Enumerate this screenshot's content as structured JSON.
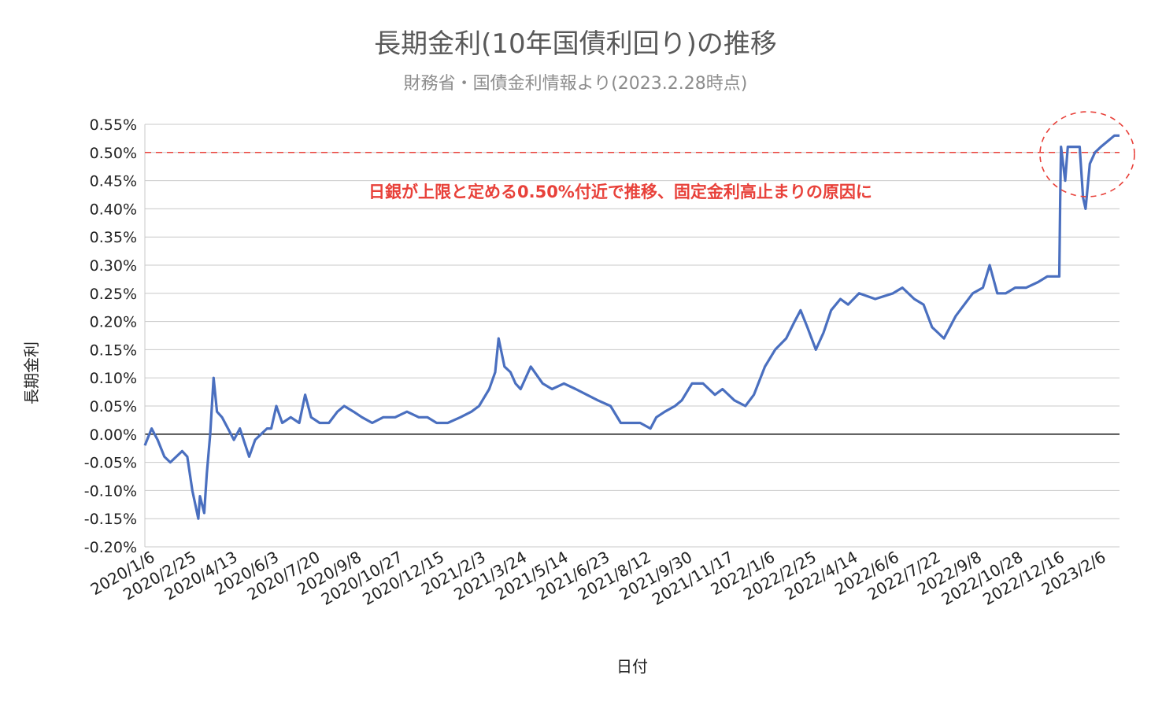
{
  "chart_data": {
    "type": "line",
    "title": "長期金利(10年国債利回り)の推移",
    "subtitle": "財務省・国債金利情報より(2023.2.28時点)",
    "xlabel": "日付",
    "ylabel": "長期金利",
    "ylim": [
      -0.2,
      0.55
    ],
    "yticks": [
      0.55,
      0.5,
      0.45,
      0.4,
      0.35,
      0.3,
      0.25,
      0.2,
      0.15,
      0.1,
      0.05,
      0.0,
      -0.05,
      -0.1,
      -0.15,
      -0.2
    ],
    "ytick_labels": [
      "0.55%",
      "0.50%",
      "0.45%",
      "0.40%",
      "0.35%",
      "0.30%",
      "0.25%",
      "0.20%",
      "0.15%",
      "0.10%",
      "0.05%",
      "0.00%",
      "-0.05%",
      "-0.10%",
      "-0.15%",
      "-0.20%"
    ],
    "xtick_labels": [
      "2020/1/6",
      "2020/2/25",
      "2020/4/13",
      "2020/6/3",
      "2020/7/20",
      "2020/9/8",
      "2020/10/27",
      "2020/12/15",
      "2021/2/3",
      "2021/3/24",
      "2021/5/14",
      "2021/6/23",
      "2021/8/12",
      "2021/9/30",
      "2021/11/17",
      "2022/1/6",
      "2022/2/25",
      "2022/4/14",
      "2022/6/6",
      "2022/7/22",
      "2022/9/8",
      "2022/10/28",
      "2022/12/16",
      "2023/2/6"
    ],
    "grid": true,
    "legend": "none",
    "reference_line": {
      "value": 0.5,
      "style": "dashed",
      "color": "#e8413a"
    },
    "annotation": "日銀が上限と定める0.50%付近で推移、固定金利高止まりの原因に",
    "annotation_color": "#e8413a",
    "highlight": "dashed-ellipse",
    "line_color": "#4a6fbf",
    "series": [
      {
        "points": [
          [
            "2020/1/6",
            -0.02
          ],
          [
            "2020/1/14",
            0.01
          ],
          [
            "2020/1/21",
            -0.01
          ],
          [
            "2020/1/29",
            -0.04
          ],
          [
            "2020/2/5",
            -0.05
          ],
          [
            "2020/2/12",
            -0.04
          ],
          [
            "2020/2/19",
            -0.03
          ],
          [
            "2020/2/25",
            -0.04
          ],
          [
            "2020/3/2",
            -0.1
          ],
          [
            "2020/3/9",
            -0.15
          ],
          [
            "2020/3/11",
            -0.11
          ],
          [
            "2020/3/16",
            -0.14
          ],
          [
            "2020/3/19",
            -0.07
          ],
          [
            "2020/3/23",
            0.0
          ],
          [
            "2020/3/27",
            0.1
          ],
          [
            "2020/3/31",
            0.04
          ],
          [
            "2020/4/6",
            0.03
          ],
          [
            "2020/4/13",
            0.01
          ],
          [
            "2020/4/20",
            -0.01
          ],
          [
            "2020/4/27",
            0.01
          ],
          [
            "2020/5/8",
            -0.04
          ],
          [
            "2020/5/15",
            -0.01
          ],
          [
            "2020/5/22",
            0.0
          ],
          [
            "2020/5/29",
            0.01
          ],
          [
            "2020/6/3",
            0.01
          ],
          [
            "2020/6/9",
            0.05
          ],
          [
            "2020/6/16",
            0.02
          ],
          [
            "2020/6/26",
            0.03
          ],
          [
            "2020/7/6",
            0.02
          ],
          [
            "2020/7/13",
            0.07
          ],
          [
            "2020/7/20",
            0.03
          ],
          [
            "2020/7/30",
            0.02
          ],
          [
            "2020/8/10",
            0.02
          ],
          [
            "2020/8/20",
            0.04
          ],
          [
            "2020/8/28",
            0.05
          ],
          [
            "2020/9/8",
            0.04
          ],
          [
            "2020/9/18",
            0.03
          ],
          [
            "2020/9/30",
            0.02
          ],
          [
            "2020/10/13",
            0.03
          ],
          [
            "2020/10/27",
            0.03
          ],
          [
            "2020/11/10",
            0.04
          ],
          [
            "2020/11/24",
            0.03
          ],
          [
            "2020/12/4",
            0.03
          ],
          [
            "2020/12/15",
            0.02
          ],
          [
            "2020/12/28",
            0.02
          ],
          [
            "2021/1/12",
            0.03
          ],
          [
            "2021/1/25",
            0.04
          ],
          [
            "2021/2/3",
            0.05
          ],
          [
            "2021/2/15",
            0.08
          ],
          [
            "2021/2/22",
            0.11
          ],
          [
            "2021/2/26",
            0.17
          ],
          [
            "2021/3/5",
            0.12
          ],
          [
            "2021/3/12",
            0.11
          ],
          [
            "2021/3/18",
            0.09
          ],
          [
            "2021/3/24",
            0.08
          ],
          [
            "2021/4/5",
            0.12
          ],
          [
            "2021/4/19",
            0.09
          ],
          [
            "2021/4/30",
            0.08
          ],
          [
            "2021/5/14",
            0.09
          ],
          [
            "2021/5/28",
            0.08
          ],
          [
            "2021/6/10",
            0.07
          ],
          [
            "2021/6/23",
            0.06
          ],
          [
            "2021/7/8",
            0.05
          ],
          [
            "2021/7/20",
            0.02
          ],
          [
            "2021/8/2",
            0.02
          ],
          [
            "2021/8/12",
            0.02
          ],
          [
            "2021/8/24",
            0.01
          ],
          [
            "2021/8/31",
            0.03
          ],
          [
            "2021/9/10",
            0.04
          ],
          [
            "2021/9/22",
            0.05
          ],
          [
            "2021/9/30",
            0.06
          ],
          [
            "2021/10/12",
            0.09
          ],
          [
            "2021/10/25",
            0.09
          ],
          [
            "2021/11/8",
            0.07
          ],
          [
            "2021/11/17",
            0.08
          ],
          [
            "2021/12/1",
            0.06
          ],
          [
            "2021/12/14",
            0.05
          ],
          [
            "2021/12/24",
            0.07
          ],
          [
            "2022/1/6",
            0.12
          ],
          [
            "2022/1/18",
            0.15
          ],
          [
            "2022/1/31",
            0.17
          ],
          [
            "2022/2/10",
            0.2
          ],
          [
            "2022/2/17",
            0.22
          ],
          [
            "2022/2/25",
            0.19
          ],
          [
            "2022/3/7",
            0.15
          ],
          [
            "2022/3/16",
            0.18
          ],
          [
            "2022/3/25",
            0.22
          ],
          [
            "2022/4/5",
            0.24
          ],
          [
            "2022/4/14",
            0.23
          ],
          [
            "2022/4/27",
            0.25
          ],
          [
            "2022/5/16",
            0.24
          ],
          [
            "2022/6/6",
            0.25
          ],
          [
            "2022/6/17",
            0.26
          ],
          [
            "2022/7/1",
            0.24
          ],
          [
            "2022/7/12",
            0.23
          ],
          [
            "2022/7/22",
            0.19
          ],
          [
            "2022/7/29",
            0.18
          ],
          [
            "2022/8/5",
            0.17
          ],
          [
            "2022/8/19",
            0.21
          ],
          [
            "2022/9/8",
            0.25
          ],
          [
            "2022/9/20",
            0.26
          ],
          [
            "2022/9/28",
            0.3
          ],
          [
            "2022/10/7",
            0.25
          ],
          [
            "2022/10/17",
            0.25
          ],
          [
            "2022/10/28",
            0.26
          ],
          [
            "2022/11/10",
            0.26
          ],
          [
            "2022/11/24",
            0.27
          ],
          [
            "2022/12/5",
            0.28
          ],
          [
            "2022/12/16",
            0.28
          ],
          [
            "2022/12/19",
            0.28
          ],
          [
            "2022/12/20",
            0.41
          ],
          [
            "2022/12/21",
            0.51
          ],
          [
            "2022/12/26",
            0.45
          ],
          [
            "2022/12/29",
            0.51
          ],
          [
            "2023/1/6",
            0.51
          ],
          [
            "2023/1/12",
            0.51
          ],
          [
            "2023/1/16",
            0.42
          ],
          [
            "2023/1/19",
            0.4
          ],
          [
            "2023/1/24",
            0.48
          ],
          [
            "2023/1/30",
            0.5
          ],
          [
            "2023/2/6",
            0.51
          ],
          [
            "2023/2/14",
            0.52
          ],
          [
            "2023/2/22",
            0.53
          ],
          [
            "2023/2/28",
            0.53
          ]
        ]
      }
    ]
  }
}
